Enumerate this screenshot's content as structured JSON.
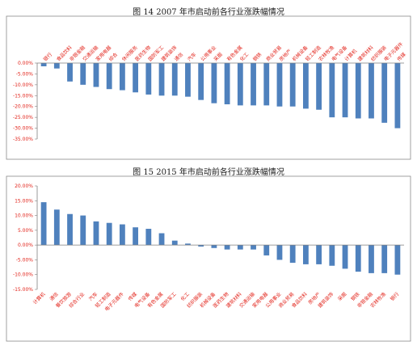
{
  "chart_data": [
    {
      "type": "bar",
      "title": "图 14   2007 年市启动前各行业涨跌幅情况",
      "categories": [
        "银行",
        "食品饮料",
        "非银金融",
        "交通运输",
        "家用电器",
        "综合",
        "休闲服务",
        "医药生物",
        "国防军工",
        "建筑装饰",
        "通信",
        "汽车",
        "公用事业",
        "采掘",
        "有色金属",
        "化工",
        "钢铁",
        "商业贸易",
        "房地产",
        "机械设备",
        "轻工制造",
        "农林牧渔",
        "电气设备",
        "计算机",
        "建筑材料",
        "纺织服装",
        "电子元器件",
        "传媒"
      ],
      "values": [
        -1.5,
        -2.5,
        -8.5,
        -10.0,
        -11.0,
        -12.0,
        -12.5,
        -13.5,
        -14.5,
        -15.0,
        -15.0,
        -15.5,
        -17.0,
        -18.5,
        -19.0,
        -19.5,
        -19.5,
        -19.5,
        -20.0,
        -20.0,
        -21.0,
        -21.5,
        -25.0,
        -25.0,
        -25.5,
        -25.5,
        -27.5,
        -30.0
      ],
      "ylim": [
        -35,
        0
      ],
      "ticks": [
        "0.00%",
        "-5.00%",
        "-10.00%",
        "-15.00%",
        "-20.00%",
        "-25.00%",
        "-30.00%",
        "-35.00%"
      ],
      "bar_color": "#4f81bd"
    },
    {
      "type": "bar",
      "title": "图 15   2015 年市启动前各行业涨跌幅情况",
      "categories": [
        "计算机",
        "通信",
        "餐饮旅游",
        "综合行业",
        "汽车",
        "轻工制造",
        "电子元器件",
        "传媒",
        "电气设备",
        "有色金属",
        "国防军工",
        "化工",
        "纺织服装",
        "机械设备",
        "医药生物",
        "建筑材料",
        "交通运输",
        "家用电器",
        "公用事业",
        "商业贸易",
        "食品饮料",
        "房地产",
        "建筑装饰",
        "采掘",
        "钢铁",
        "非银金融",
        "农林牧渔",
        "银行"
      ],
      "values": [
        14.5,
        12.0,
        10.5,
        10.0,
        8.0,
        7.5,
        7.0,
        6.0,
        5.5,
        4.0,
        1.5,
        0.5,
        -0.5,
        -1.0,
        -1.5,
        -1.5,
        -1.5,
        -3.5,
        -5.0,
        -6.0,
        -6.5,
        -6.5,
        -7.0,
        -8.0,
        -9.0,
        -9.5,
        -9.5,
        -10.0
      ],
      "ylim": [
        -15,
        20
      ],
      "ticks": [
        "20.00%",
        "15.00%",
        "10.00%",
        "5.00%",
        "0.00%",
        "-5.00%",
        "-10.00%",
        "-15.00%"
      ],
      "bar_color": "#4f81bd"
    }
  ]
}
